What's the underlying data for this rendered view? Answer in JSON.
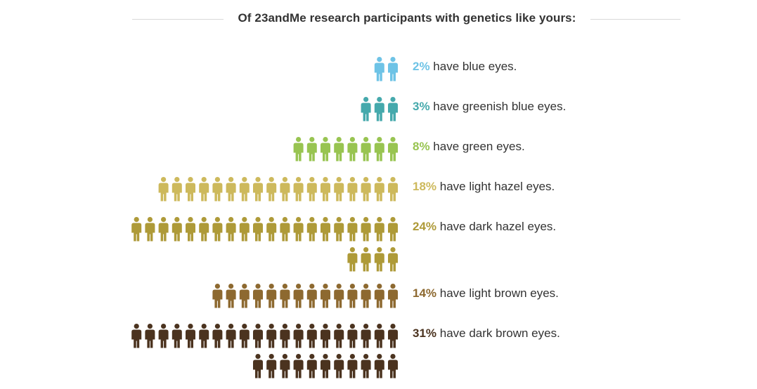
{
  "header": {
    "title": "Of 23andMe research participants with genetics like yours:"
  },
  "chart_data": {
    "type": "pictogram",
    "title": "Of 23andMe research participants with genetics like yours:",
    "unit": "percent of participants (1 figure = 1%)",
    "rows": [
      {
        "percent": 2,
        "pct_label": "2%",
        "text": " have blue eyes.",
        "color": "#6ec3e6"
      },
      {
        "percent": 3,
        "pct_label": "3%",
        "text": " have greenish blue eyes.",
        "color": "#45a9ac"
      },
      {
        "percent": 8,
        "pct_label": "8%",
        "text": " have green eyes.",
        "color": "#98c451"
      },
      {
        "percent": 18,
        "pct_label": "18%",
        "text": " have light hazel eyes.",
        "color": "#cdb95c"
      },
      {
        "percent": 24,
        "pct_label": "24%",
        "text": " have dark hazel eyes.",
        "color": "#ae9a38"
      },
      {
        "percent": 14,
        "pct_label": "14%",
        "text": " have light brown eyes.",
        "color": "#8d6930"
      },
      {
        "percent": 31,
        "pct_label": "31%",
        "text": " have dark brown eyes.",
        "color": "#4b331f"
      }
    ]
  }
}
